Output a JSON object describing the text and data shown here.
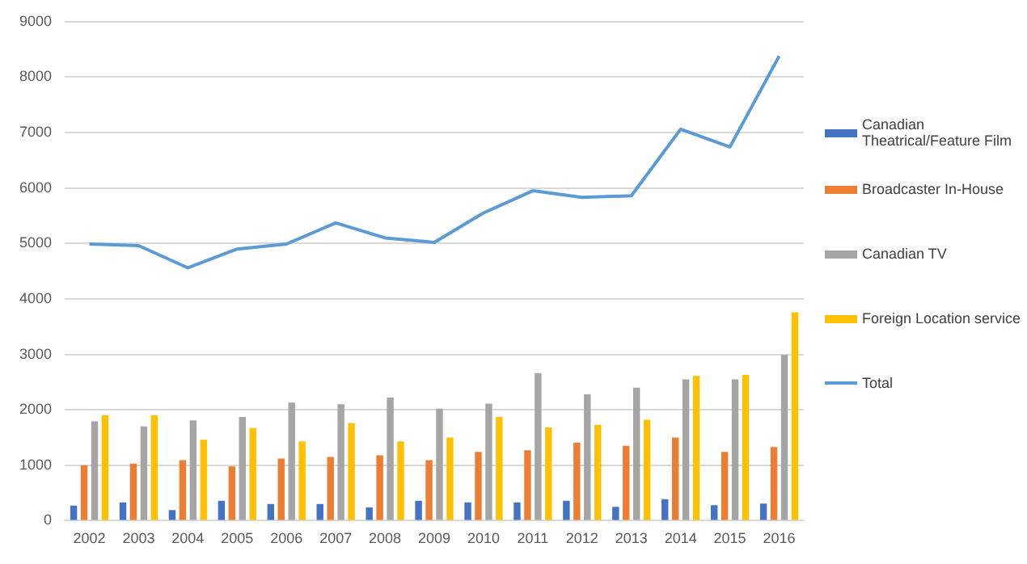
{
  "chart_data": {
    "type": "bar",
    "categories": [
      "2002",
      "2003",
      "2004",
      "2005",
      "2006",
      "2007",
      "2008",
      "2009",
      "2010",
      "2011",
      "2012",
      "2013",
      "2014",
      "2015",
      "2016"
    ],
    "series": [
      {
        "name": "Canadian Theatrical/Feature Film",
        "color": "#4472c4",
        "values": [
          270,
          330,
          190,
          360,
          300,
          300,
          240,
          360,
          330,
          330,
          360,
          250,
          390,
          280,
          310
        ]
      },
      {
        "name": "Broadcaster In-House",
        "color": "#ed7d31",
        "values": [
          1000,
          1030,
          1090,
          980,
          1120,
          1150,
          1180,
          1090,
          1240,
          1270,
          1410,
          1350,
          1500,
          1240,
          1330
        ]
      },
      {
        "name": "Canadian TV",
        "color": "#a5a5a5",
        "values": [
          1790,
          1700,
          1810,
          1870,
          2130,
          2100,
          2220,
          2020,
          2110,
          2660,
          2280,
          2400,
          2550,
          2550,
          2990
        ]
      },
      {
        "name": "Foreign Location service",
        "color": "#ffc000",
        "values": [
          1900,
          1900,
          1460,
          1670,
          1430,
          1760,
          1430,
          1500,
          1870,
          1680,
          1730,
          1820,
          2610,
          2630,
          3760
        ]
      },
      {
        "name": "Total",
        "type": "line",
        "color": "#5b9bd5",
        "values": [
          4990,
          4960,
          4560,
          4900,
          4990,
          5370,
          5100,
          5020,
          5550,
          5950,
          5830,
          5860,
          7060,
          6740,
          8380
        ]
      }
    ],
    "ylim": [
      0,
      9000
    ],
    "yticks": [
      0,
      1000,
      2000,
      3000,
      4000,
      5000,
      6000,
      7000,
      8000,
      9000
    ],
    "grid": "y",
    "legend": "right",
    "marker": "none"
  }
}
